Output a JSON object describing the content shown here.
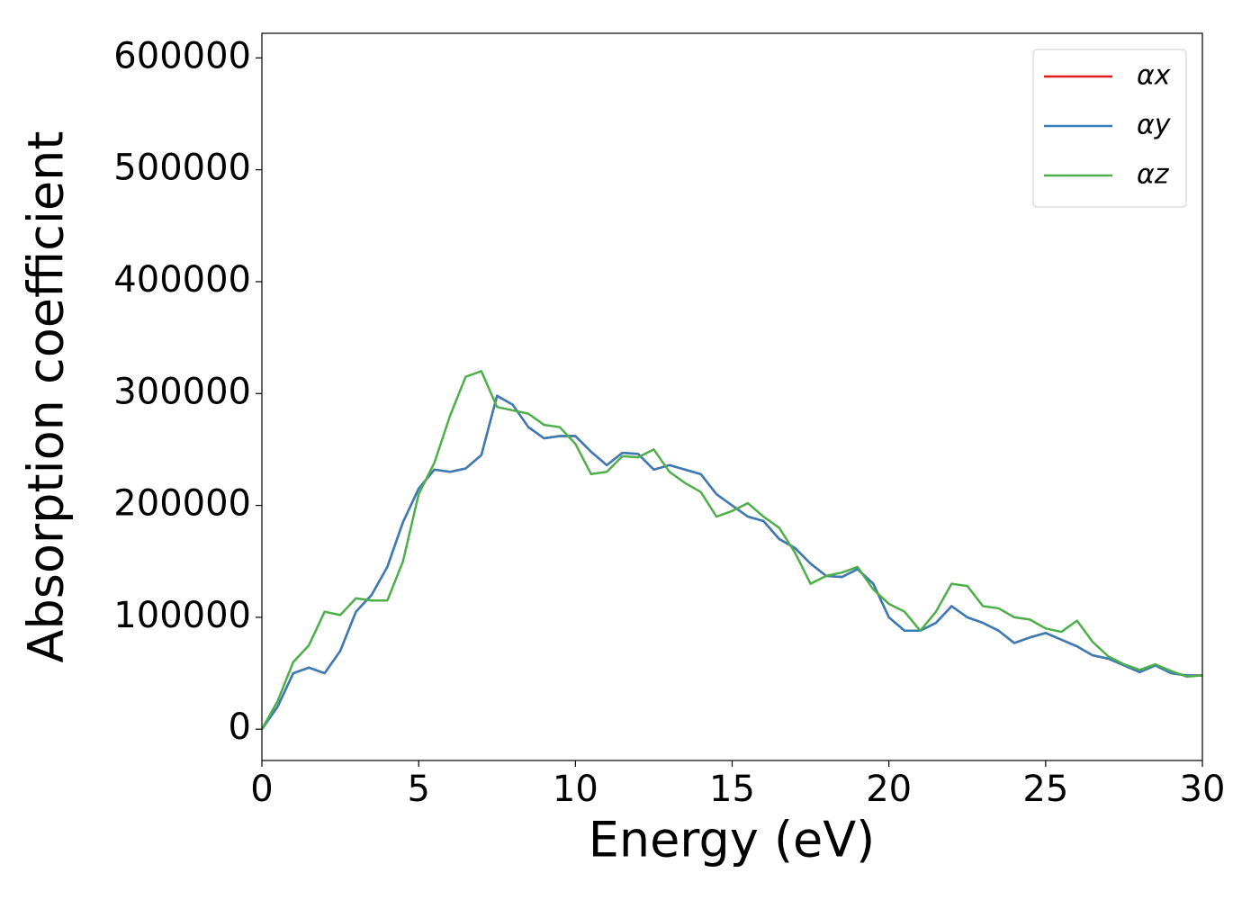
{
  "chart_data": {
    "type": "line",
    "xlabel": "Energy (eV)",
    "ylabel": "Absorption coefficient",
    "x": [
      0,
      0.5,
      1,
      1.5,
      2,
      2.5,
      3,
      3.5,
      4,
      4.5,
      5,
      5.5,
      6,
      6.5,
      7,
      7.5,
      8,
      8.5,
      9,
      9.5,
      10,
      10.5,
      11,
      11.5,
      12,
      12.5,
      13,
      13.5,
      14,
      14.5,
      15,
      15.5,
      16,
      16.5,
      17,
      17.5,
      18,
      18.5,
      19,
      19.5,
      20,
      20.5,
      21,
      21.5,
      22,
      22.5,
      23,
      23.5,
      24,
      24.5,
      25,
      25.5,
      26,
      26.5,
      27,
      27.5,
      28,
      28.5,
      29,
      29.5,
      30
    ],
    "series": [
      {
        "name": "αx",
        "color": "#e41a1c",
        "values": [
          0,
          20000,
          50000,
          55000,
          50000,
          70000,
          105000,
          120000,
          145000,
          185000,
          215000,
          232000,
          230000,
          233000,
          245000,
          298000,
          290000,
          270000,
          260000,
          262000,
          262000,
          248000,
          236000,
          247000,
          246000,
          232000,
          236000,
          232000,
          228000,
          210000,
          200000,
          190000,
          186000,
          170000,
          162000,
          148000,
          137000,
          136000,
          143000,
          130000,
          100000,
          88000,
          88000,
          95000,
          110000,
          100000,
          95000,
          88000,
          77000,
          82000,
          86000,
          80000,
          74000,
          66000,
          63000,
          57000,
          51000,
          57000,
          50000,
          48000,
          48000
        ]
      },
      {
        "name": "αy",
        "color": "#377eb8",
        "values": [
          0,
          20000,
          50000,
          55000,
          50000,
          70000,
          105000,
          120000,
          145000,
          185000,
          215000,
          232000,
          230000,
          233000,
          245000,
          298000,
          290000,
          270000,
          260000,
          262000,
          262000,
          248000,
          236000,
          247000,
          246000,
          232000,
          236000,
          232000,
          228000,
          210000,
          200000,
          190000,
          186000,
          170000,
          162000,
          148000,
          137000,
          136000,
          143000,
          130000,
          100000,
          88000,
          88000,
          95000,
          110000,
          100000,
          95000,
          88000,
          77000,
          82000,
          86000,
          80000,
          74000,
          66000,
          63000,
          57000,
          51000,
          57000,
          50000,
          48000,
          48000
        ]
      },
      {
        "name": "αz",
        "color": "#4daf4a",
        "values": [
          0,
          25000,
          60000,
          75000,
          105000,
          102000,
          117000,
          115000,
          115000,
          150000,
          210000,
          238000,
          280000,
          315000,
          320000,
          288000,
          285000,
          282000,
          272000,
          270000,
          255000,
          228000,
          230000,
          244000,
          243000,
          250000,
          230000,
          220000,
          212000,
          190000,
          195000,
          202000,
          190000,
          180000,
          158000,
          130000,
          137000,
          140000,
          145000,
          125000,
          112000,
          105000,
          88000,
          105000,
          130000,
          128000,
          110000,
          108000,
          100000,
          98000,
          90000,
          87000,
          97000,
          78000,
          65000,
          58000,
          53000,
          58000,
          52000,
          47000,
          48000
        ]
      }
    ],
    "xlim": [
      0,
      30
    ],
    "xticks": [
      0,
      5,
      10,
      15,
      20,
      25,
      30
    ],
    "ylim": [
      -28000,
      622000
    ],
    "yticks": [
      0,
      100000,
      200000,
      300000,
      400000,
      500000,
      600000
    ],
    "legend": "upper right"
  }
}
